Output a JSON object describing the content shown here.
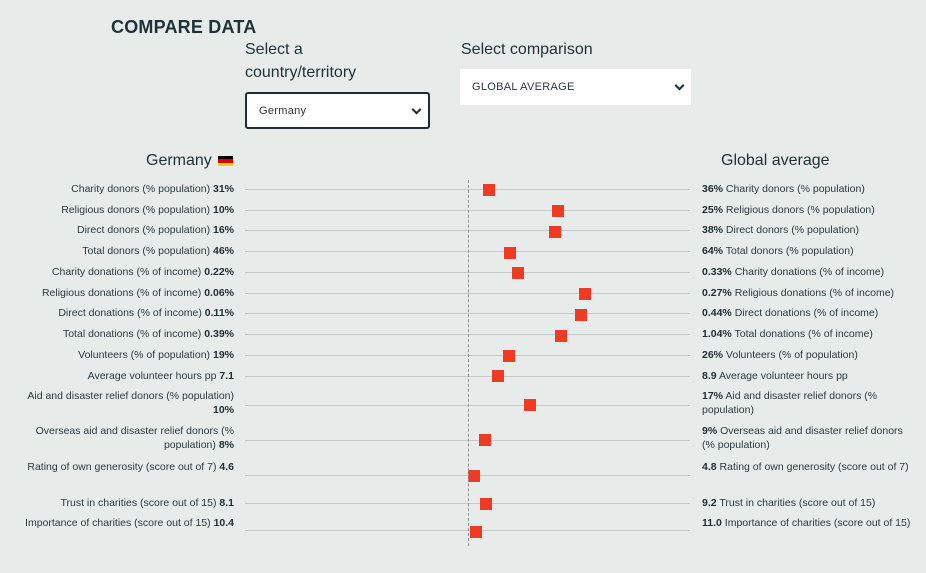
{
  "title": "COMPARE DATA",
  "country_selector": {
    "label": "Select a country/territory",
    "value": "Germany"
  },
  "comparison_selector": {
    "label": "Select comparison",
    "value": "GLOBAL AVERAGE"
  },
  "left_header": "Germany",
  "right_header": "Global average",
  "colors": {
    "marker": "#ef3a24",
    "flag": [
      "#000000",
      "#dd0000",
      "#ffce00"
    ]
  },
  "rows": [
    {
      "metric": "Charity donors (% population)",
      "country_value": "31%",
      "global_value": "36%",
      "ratio": 0.86
    },
    {
      "metric": "Religious donors (% population)",
      "country_value": "10%",
      "global_value": "25%",
      "ratio": 0.4
    },
    {
      "metric": "Direct donors (% population)",
      "country_value": "16%",
      "global_value": "38%",
      "ratio": 0.42
    },
    {
      "metric": "Total donors (% population)",
      "country_value": "46%",
      "global_value": "64%",
      "ratio": 0.72
    },
    {
      "metric": "Charity donations (% of income)",
      "country_value": "0.22%",
      "global_value": "0.33%",
      "ratio": 0.67
    },
    {
      "metric": "Religious donations (% of income)",
      "country_value": "0.06%",
      "global_value": "0.27%",
      "ratio": 0.22
    },
    {
      "metric": "Direct donations (% of income)",
      "country_value": "0.11%",
      "global_value": "0.44%",
      "ratio": 0.25
    },
    {
      "metric": "Total donations (% of income)",
      "country_value": "0.39%",
      "global_value": "1.04%",
      "ratio": 0.38
    },
    {
      "metric": "Volunteers (% of population)",
      "country_value": "19%",
      "global_value": "26%",
      "ratio": 0.73
    },
    {
      "metric": "Average volunteer hours pp",
      "country_value": "7.1",
      "global_value": "8.9",
      "ratio": 0.8
    },
    {
      "metric": "Aid and disaster relief donors (% population)",
      "country_value": "10%",
      "global_value": "17%",
      "ratio": 0.59
    },
    {
      "metric": "Overseas aid and disaster relief donors (% population)",
      "country_value": "8%",
      "global_value": "9%",
      "ratio": 0.89
    },
    {
      "metric": "Rating of own generosity (score out of 7)",
      "country_value": "4.6",
      "global_value": "4.8",
      "ratio": 0.96
    },
    {
      "metric": "Trust in charities (score out of 15)",
      "country_value": "8.1",
      "global_value": "9.2",
      "ratio": 0.88
    },
    {
      "metric": "Importance of charities (score out of 15)",
      "country_value": "10.4",
      "global_value": "11.0",
      "ratio": 0.95
    }
  ]
}
